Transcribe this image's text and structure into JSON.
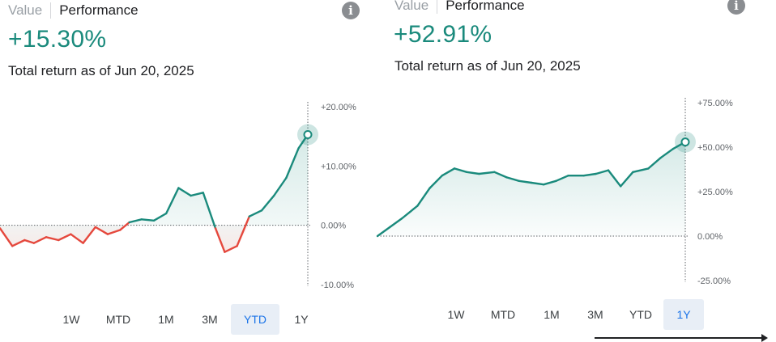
{
  "left": {
    "tab_value": "Value",
    "tab_performance": "Performance",
    "return_value": "+15.30%",
    "subtitle": "Total return as of Jun 20, 2025",
    "ranges": [
      "1W",
      "MTD",
      "1M",
      "3M",
      "YTD",
      "1Y"
    ],
    "active_range": "YTD"
  },
  "right": {
    "tab_value": "Value",
    "tab_performance": "Performance",
    "return_value": "+52.91%",
    "subtitle": "Total return as of Jun 20, 2025",
    "ranges": [
      "1W",
      "MTD",
      "1M",
      "3M",
      "YTD",
      "1Y"
    ],
    "active_range": "1Y"
  },
  "colors": {
    "positive": "#1a8a7c",
    "negative": "#e5483d",
    "active_range_bg": "#e8eef6",
    "active_range_text": "#1a73e8"
  },
  "chart_data": [
    {
      "type": "line",
      "title": "",
      "y_ticks": [
        "+20.00%",
        "+10.00%",
        "0.00%",
        "-10.00%"
      ],
      "ylim": [
        -10,
        20
      ],
      "x": [
        0,
        4,
        8,
        11,
        15,
        19,
        23,
        27,
        31,
        35,
        39,
        42,
        46,
        50,
        54,
        58,
        62,
        66,
        70,
        73,
        77,
        81,
        85,
        89,
        93,
        97,
        100
      ],
      "y": [
        -0.5,
        -3.5,
        -2.5,
        -3,
        -2,
        -2.5,
        -1.5,
        -3,
        -0.3,
        -1.5,
        -0.8,
        0.5,
        1,
        0.8,
        2,
        6.3,
        5,
        5.5,
        -0.5,
        -4.5,
        -3.5,
        1.5,
        2.5,
        5,
        8,
        13,
        15.3
      ],
      "last_value_label": "+15.30%"
    },
    {
      "type": "line",
      "title": "",
      "y_ticks": [
        "+75.00%",
        "+50.00%",
        "+25.00%",
        "0.00%",
        "-25.00%"
      ],
      "ylim": [
        -25,
        75
      ],
      "x": [
        0,
        4,
        8,
        13,
        17,
        21,
        25,
        29,
        33,
        38,
        42,
        46,
        50,
        54,
        58,
        62,
        67,
        71,
        75,
        79,
        83,
        88,
        92,
        96,
        100
      ],
      "y": [
        0,
        5,
        10,
        17,
        27,
        34,
        38,
        36,
        35,
        36,
        33,
        31,
        30,
        29,
        31,
        34,
        34,
        35,
        37,
        28,
        36,
        38,
        44,
        49,
        52.91
      ],
      "last_value_label": "+52.91%"
    }
  ]
}
